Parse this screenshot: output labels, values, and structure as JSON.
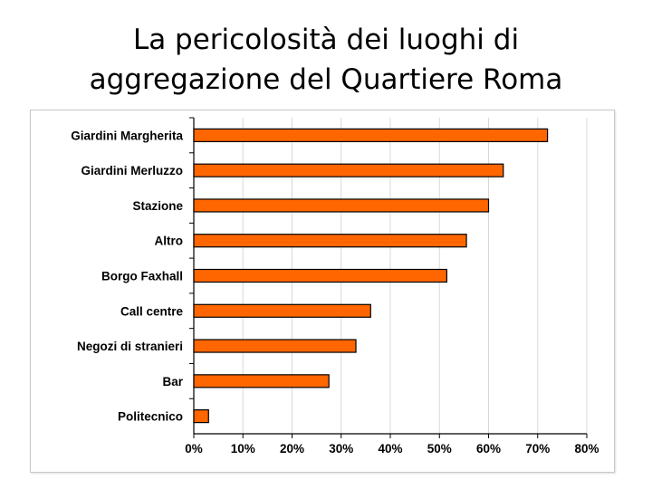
{
  "slide": {
    "title_line1": "La pericolosità dei luoghi di",
    "title_line2": "aggregazione del Quartiere Roma"
  },
  "chart_data": {
    "type": "bar",
    "orientation": "horizontal",
    "categories": [
      "Giardini Margherita",
      "Giardini Merluzzo",
      "Stazione",
      "Altro",
      "Borgo Faxhall",
      "Call centre",
      "Negozi di stranieri",
      "Bar",
      "Politecnico"
    ],
    "values": [
      0.72,
      0.63,
      0.6,
      0.555,
      0.515,
      0.36,
      0.33,
      0.275,
      0.03
    ],
    "xlim": [
      0,
      0.8
    ],
    "xticks": [
      "0%",
      "10%",
      "20%",
      "30%",
      "40%",
      "50%",
      "60%",
      "70%",
      "80%"
    ],
    "grid": true,
    "legend": "none",
    "colors": {
      "bar": "#ff6600",
      "bar_edge": "#000000",
      "grid": "#d8d8d8"
    }
  }
}
